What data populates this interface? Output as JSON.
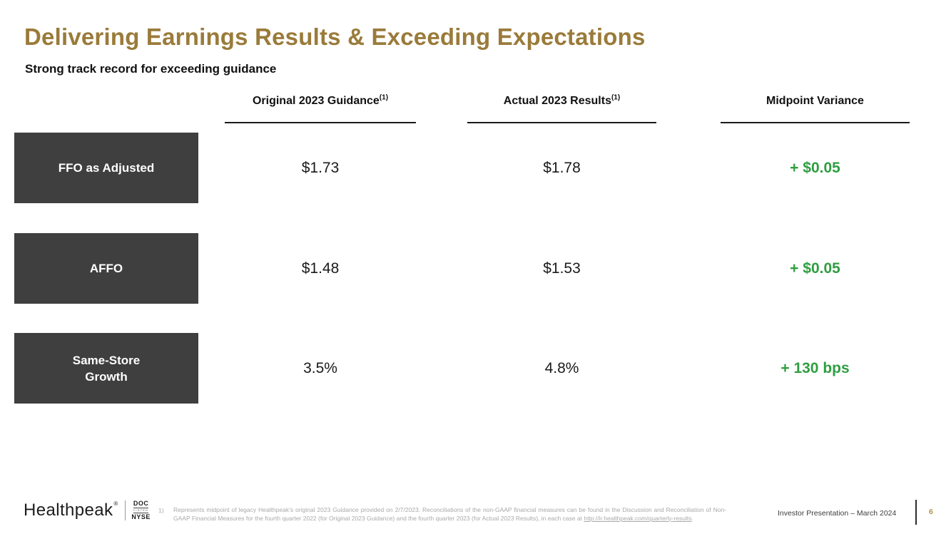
{
  "slide": {
    "title": "Delivering Earnings Results & Exceeding Expectations",
    "subtitle": "Strong track record for exceeding guidance"
  },
  "table": {
    "columns": [
      {
        "label": "Original 2023 Guidance",
        "sup": "(1)"
      },
      {
        "label": "Actual 2023 Results",
        "sup": "(1)"
      },
      {
        "label": "Midpoint Variance",
        "sup": ""
      }
    ],
    "rows": [
      {
        "label": "FFO as Adjusted",
        "guidance": "$1.73",
        "actual": "$1.78",
        "variance": "+ $0.05"
      },
      {
        "label": "AFFO",
        "guidance": "$1.48",
        "actual": "$1.53",
        "variance": "+ $0.05"
      },
      {
        "label": "Same-Store\nGrowth",
        "guidance": "3.5%",
        "actual": "4.8%",
        "variance": "+ 130 bps"
      }
    ]
  },
  "footer": {
    "logo_word": "Healthpeak",
    "logo_registered": "®",
    "ticker": {
      "symbol": "DOC",
      "listed": "LISTED",
      "exchange": "NYSE"
    },
    "footnote_marker": "1)",
    "footnote_text": "Represents midpoint of legacy Healthpeak’s original 2023 Guidance provided on 2/7/2023. Reconciliations of the non-GAAP financial measures can be found in the Discussion and Reconciliation of Non-GAAP Financial Measures for the fourth quarter 2022 (for Original 2023 Guidance) and the fourth quarter 2023 (for Actual 2023 Results), in each case at ",
    "footnote_link": "http://ir.healthpeak.com/quarterly-results",
    "footnote_suffix": ".",
    "presentation_label": "Investor Presentation – March 2024",
    "page_number": "6"
  },
  "colors": {
    "title_gold": "#9a7b3a",
    "positive_green": "#2f9e41",
    "row_box_gray": "#3f3f3f",
    "footnote_gray": "#a9a9a9",
    "page_number_gold": "#b5914d"
  }
}
